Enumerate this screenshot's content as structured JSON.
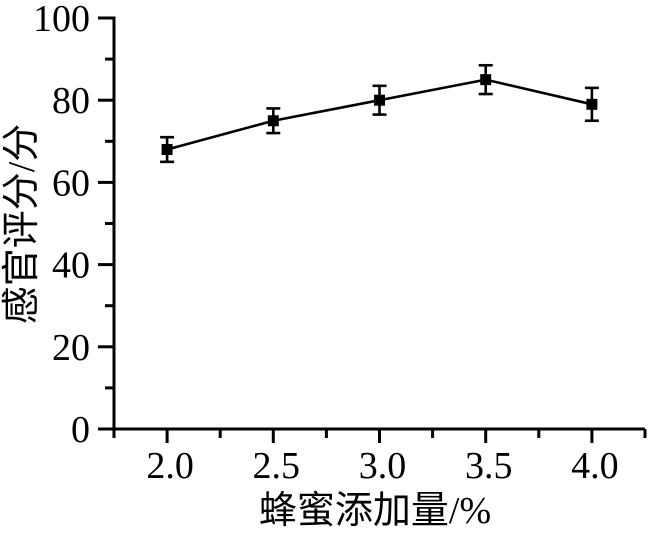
{
  "figure": {
    "background": "#ffffff",
    "ink_color": "#000000"
  },
  "chart_data": {
    "type": "line",
    "title": "",
    "xlabel": "蜂蜜添加量/%",
    "ylabel": "感官评分/分",
    "x": [
      2.0,
      2.5,
      3.0,
      3.5,
      4.0
    ],
    "x_tick_labels": [
      "2.0",
      "2.5",
      "3.0",
      "3.5",
      "4.0"
    ],
    "series": [
      {
        "name": "感官评分",
        "values": [
          68,
          75,
          80,
          85,
          79
        ],
        "errors": [
          3,
          3,
          3.5,
          3.5,
          4
        ],
        "marker": "filled-square",
        "color": "#000000"
      }
    ],
    "y_ticks": [
      0,
      20,
      40,
      60,
      80,
      100
    ],
    "y_tick_labels": [
      "0",
      "20",
      "40",
      "60",
      "80",
      "100"
    ],
    "y_minor_ticks": [
      10,
      30,
      50,
      70,
      90
    ],
    "x_minor_ticks": [
      1.75,
      2.25,
      2.75,
      3.25,
      3.75,
      4.25
    ],
    "xlim": [
      1.75,
      4.25
    ],
    "ylim": [
      0,
      100
    ],
    "grid": false,
    "legend": "none",
    "error_bars": true,
    "frame": "left-bottom-only"
  }
}
